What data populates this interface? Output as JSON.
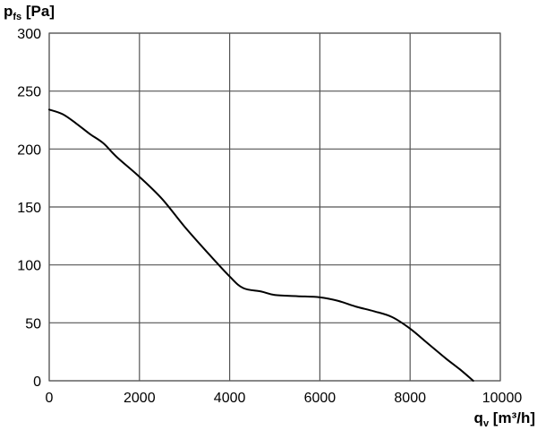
{
  "chart_data": {
    "type": "line",
    "ylabel": {
      "main": "p",
      "sub": "fs",
      "unit": " [Pa]"
    },
    "xlabel": {
      "main": "q",
      "sub": "v",
      "unit": " [m³/h]"
    },
    "xlim": [
      0,
      10000
    ],
    "ylim": [
      0,
      300
    ],
    "x_ticks": [
      0,
      2000,
      4000,
      6000,
      8000,
      10000
    ],
    "y_ticks": [
      0,
      50,
      100,
      150,
      200,
      250,
      300
    ],
    "x_tick_labels": [
      "0",
      "2000",
      "4000",
      "6000",
      "8000",
      "10000"
    ],
    "y_tick_labels": [
      "0",
      "50",
      "100",
      "150",
      "200",
      "250",
      "300"
    ],
    "grid": true,
    "series": [
      {
        "color": "#000000",
        "x": [
          0,
          300,
          600,
          900,
          1200,
          1500,
          2000,
          2500,
          3000,
          3500,
          4000,
          4300,
          4700,
          5000,
          5500,
          6000,
          6400,
          6800,
          7200,
          7600,
          8000,
          8400,
          8800,
          9100,
          9400
        ],
        "y": [
          234,
          230,
          222,
          213,
          205,
          193,
          176,
          157,
          133,
          111,
          90,
          80,
          77,
          74,
          73,
          72,
          69,
          64,
          60,
          55,
          45,
          32,
          19,
          10,
          0
        ]
      }
    ]
  }
}
